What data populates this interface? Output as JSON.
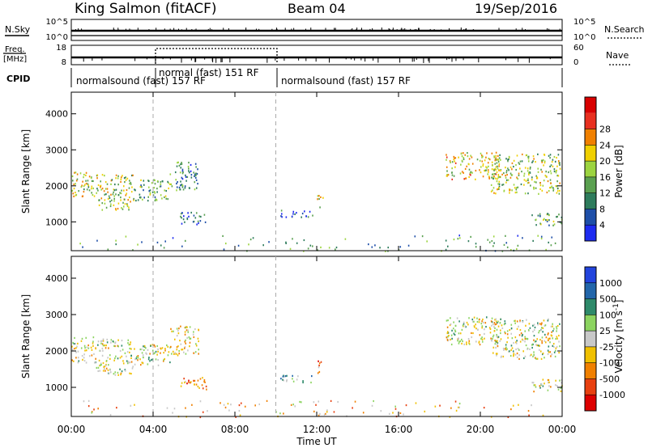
{
  "header": {
    "station": "King Salmon (fitACF)",
    "beam": "Beam 04",
    "date": "19/Sep/2016"
  },
  "strips": {
    "nsky": {
      "label": "N.Sky",
      "ticks": [
        "10^5",
        "10^0"
      ]
    },
    "nsearch": {
      "label": "N.Search",
      "ticks": [
        "10^5",
        "10^0"
      ]
    },
    "freq": {
      "label_top": "Freq.",
      "label_bottom": "[MHz]",
      "ticks": [
        "18",
        "8"
      ]
    },
    "nave": {
      "label": "Nave",
      "ticks": [
        "60",
        "0"
      ]
    },
    "cpid": {
      "label": "CPID",
      "segments": [
        {
          "text": "normalsound (fast) 157 RF",
          "start": 0,
          "end": 4,
          "text_row": "low"
        },
        {
          "text": "normal (fast) 151 RF",
          "start": 4,
          "end": 10,
          "text_row": "high"
        },
        {
          "text": "normalsound (fast) 157 RF",
          "start": 10,
          "end": 24,
          "text_row": "low"
        }
      ]
    }
  },
  "chart_data": [
    {
      "type": "heatmap",
      "parameter": "Power",
      "ylabel": "Slant Range [km]",
      "ylim": [
        200,
        4600
      ],
      "yticks": [
        1000,
        2000,
        3000,
        4000
      ],
      "xlim": [
        0,
        24
      ],
      "colorbar": {
        "label": "Power [dB]",
        "ticks": [
          "4",
          "8",
          "12",
          "16",
          "20",
          "24",
          "28"
        ],
        "colors": [
          "#1e2cf0",
          "#1e4fa8",
          "#2e7c5c",
          "#5aa050",
          "#9cd440",
          "#f0d000",
          "#f08000",
          "#e83020",
          "#d80000"
        ]
      },
      "echo_regions": [
        {
          "t0": 0.0,
          "t1": 1.2,
          "r0": 1700,
          "r1": 2400,
          "level": 0.55
        },
        {
          "t0": 1.2,
          "t1": 3.0,
          "r0": 1350,
          "r1": 2350,
          "level": 0.5
        },
        {
          "t0": 3.0,
          "t1": 4.8,
          "r0": 1600,
          "r1": 2200,
          "level": 0.4
        },
        {
          "t0": 4.8,
          "t1": 6.2,
          "r0": 1900,
          "r1": 2700,
          "level": 0.3
        },
        {
          "t0": 5.3,
          "t1": 6.6,
          "r0": 950,
          "r1": 1300,
          "level": 0.2
        },
        {
          "t0": 10.2,
          "t1": 11.8,
          "r0": 1150,
          "r1": 1350,
          "level": 0.2
        },
        {
          "t0": 12.0,
          "t1": 12.3,
          "r0": 1350,
          "r1": 1750,
          "level": 0.55
        },
        {
          "t0": 18.3,
          "t1": 21.0,
          "r0": 2200,
          "r1": 2950,
          "level": 0.6
        },
        {
          "t0": 20.5,
          "t1": 23.9,
          "r0": 1800,
          "r1": 2900,
          "level": 0.5
        },
        {
          "t0": 22.5,
          "t1": 24.0,
          "r0": 900,
          "r1": 1250,
          "level": 0.35
        },
        {
          "t0": 0.0,
          "t1": 24.0,
          "r0": 200,
          "r1": 650,
          "level": 0.3
        }
      ]
    },
    {
      "type": "heatmap",
      "parameter": "Velocity",
      "ylabel": "Slant Range [km]",
      "ylim": [
        200,
        4600
      ],
      "yticks": [
        1000,
        2000,
        3000,
        4000
      ],
      "xlim": [
        0,
        24
      ],
      "colorbar": {
        "label": "Velocity [m s^-1]",
        "ticks": [
          "1000",
          "500",
          "100",
          "25",
          "-25",
          "-100",
          "-500",
          "-1000"
        ],
        "colors": [
          "#2244dd",
          "#2266aa",
          "#2e8a6a",
          "#8cd460",
          "#c8c8c8",
          "#f0c000",
          "#f08000",
          "#e84010",
          "#dd0000"
        ]
      },
      "echo_regions": [
        {
          "t0": 0.0,
          "t1": 1.2,
          "r0": 1700,
          "r1": 2400,
          "level": 0.5
        },
        {
          "t0": 1.2,
          "t1": 3.0,
          "r0": 1350,
          "r1": 2350,
          "level": 0.5
        },
        {
          "t0": 3.0,
          "t1": 4.8,
          "r0": 1600,
          "r1": 2200,
          "level": 0.5
        },
        {
          "t0": 4.8,
          "t1": 6.2,
          "r0": 1900,
          "r1": 2700,
          "level": 0.55
        },
        {
          "t0": 5.3,
          "t1": 6.6,
          "r0": 950,
          "r1": 1300,
          "level": 0.7
        },
        {
          "t0": 10.2,
          "t1": 11.8,
          "r0": 1150,
          "r1": 1350,
          "level": 0.35
        },
        {
          "t0": 12.0,
          "t1": 12.3,
          "r0": 1350,
          "r1": 1750,
          "level": 0.75
        },
        {
          "t0": 18.3,
          "t1": 21.0,
          "r0": 2200,
          "r1": 2950,
          "level": 0.5
        },
        {
          "t0": 20.5,
          "t1": 23.9,
          "r0": 1800,
          "r1": 2900,
          "level": 0.5
        },
        {
          "t0": 22.5,
          "t1": 24.0,
          "r0": 900,
          "r1": 1250,
          "level": 0.5
        },
        {
          "t0": 0.0,
          "t1": 24.0,
          "r0": 200,
          "r1": 650,
          "level": 0.65
        }
      ]
    }
  ],
  "xaxis": {
    "label": "Time UT",
    "ticks": [
      "00:00",
      "04:00",
      "08:00",
      "12:00",
      "16:00",
      "20:00",
      "00:00"
    ],
    "dashed_markers": [
      4,
      10
    ]
  }
}
